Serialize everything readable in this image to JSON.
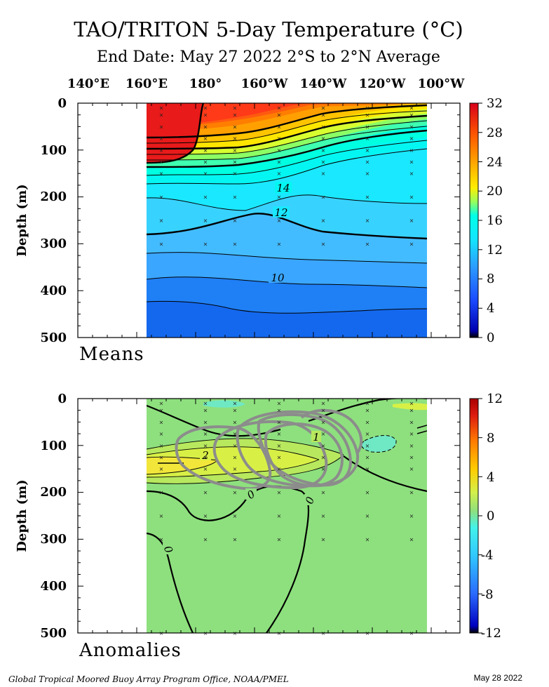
{
  "title": "TAO/TRITON 5-Day Temperature (°C)",
  "subtitle": "End Date: May 27 2022  2°S to 2°N Average",
  "footer_credit": "Global Tropical Moored Buoy Array Program Office, NOAA/PMEL",
  "footer_date": "May 28 2022",
  "chart_data": [
    {
      "type": "heatmap",
      "panel_label": "Means",
      "ylabel": "Depth (m)",
      "x_tick_labels": [
        "140°E",
        "160°E",
        "180°",
        "160°W",
        "140°W",
        "120°W",
        "100°W"
      ],
      "y_tick_labels": [
        "0",
        "100",
        "200",
        "300",
        "400",
        "500"
      ],
      "ylim": [
        0,
        500
      ],
      "y_inverted": true,
      "colorbar_ticks": [
        "32",
        "28",
        "24",
        "20",
        "16",
        "12",
        "8",
        "4",
        "0"
      ],
      "colorbar_range": [
        0,
        32
      ],
      "contour_labels": [
        "14",
        "12",
        "10"
      ],
      "data_longitude_range": [
        "160°E",
        "95°W"
      ],
      "isotherm_depths_m": {
        "lon_deg_east": [
          160,
          180,
          200,
          220,
          240,
          260,
          275
        ],
        "28": [
          125,
          115,
          95,
          75,
          55,
          30,
          15
        ],
        "20": [
          175,
          165,
          145,
          120,
          90,
          65,
          45
        ],
        "14": [
          215,
          205,
          190,
          165,
          140,
          115,
          95
        ],
        "12": [
          280,
          270,
          240,
          255,
          275,
          290,
          290
        ],
        "10": [
          370,
          380,
          375,
          385,
          395,
          395,
          395
        ]
      }
    },
    {
      "type": "heatmap",
      "panel_label": "Anomalies",
      "ylabel": "Depth (m)",
      "y_tick_labels": [
        "0",
        "100",
        "200",
        "300",
        "400",
        "500"
      ],
      "ylim": [
        0,
        500
      ],
      "y_inverted": true,
      "colorbar_ticks": [
        "12",
        "8",
        "4",
        "0",
        "-4",
        "-8",
        "-12"
      ],
      "colorbar_range": [
        -12,
        12
      ],
      "contour_labels": [
        "2",
        "1",
        "0",
        "0",
        "0"
      ],
      "max_anomaly_region": {
        "lon_deg_east": [
          160,
          200
        ],
        "depth_m": [
          100,
          170
        ],
        "value": 3
      }
    }
  ],
  "colors": {
    "background": "#ffffff",
    "contour": "#000000",
    "grey_overlay": "#8c8c8c",
    "anomaly_base": "#8ee07e",
    "means_scale": [
      "#000000",
      "#0000b0",
      "#1a4bff",
      "#2c9bff",
      "#12e6ff",
      "#00ffe8",
      "#9aff5a",
      "#ffee00",
      "#ffaa00",
      "#ff5a00",
      "#d8001a"
    ],
    "anom_scale": [
      "#000000",
      "#0000c0",
      "#2a6cff",
      "#31c8ff",
      "#44f2ea",
      "#8ee07e",
      "#d4f04a",
      "#ffcc00",
      "#ff7a00",
      "#dd1a10",
      "#aa0000"
    ]
  }
}
